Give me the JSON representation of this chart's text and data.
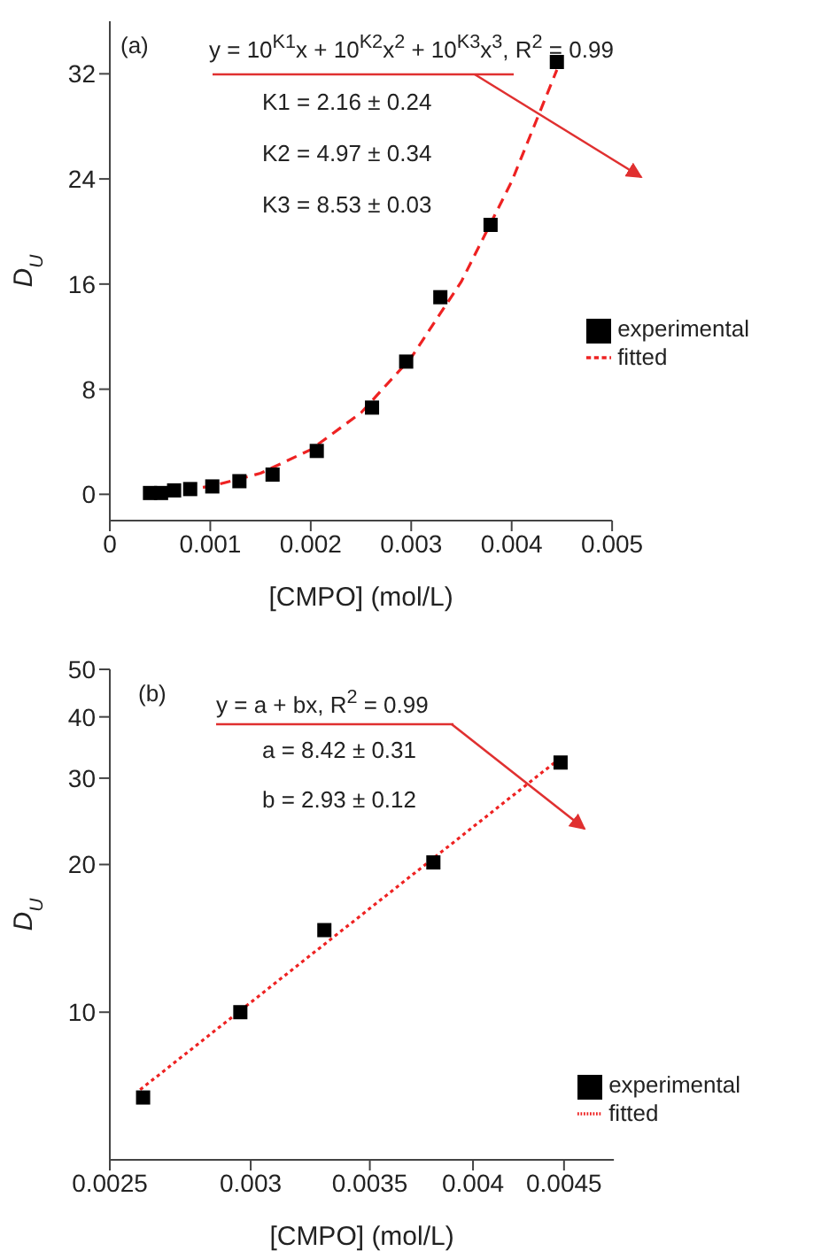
{
  "chart_data": [
    {
      "type": "scatter",
      "xlabel": "[CMPO] (mol/L)",
      "ylabel": "D$_{U}$",
      "xlim": [
        0,
        0.005
      ],
      "xticks": [
        0,
        {
          "value": 0.001,
          "label": "0.001"
        },
        {
          "value": 0.002,
          "label": "0.002"
        },
        {
          "value": 0.003,
          "label": "0.003"
        },
        {
          "value": 0.004,
          "label": "0.004"
        },
        {
          "value": 0.005,
          "label": "0.005"
        }
      ],
      "ylim": [
        -2,
        36
      ],
      "yticks": [
        0,
        8,
        16,
        24,
        32
      ],
      "marker": "square",
      "legend": "right",
      "annotations": [
        "(a)",
        "y = 10$^{K1}$x + 10$^{K2}$x$^{2}$ + 10$^{K3}$x$^{3}$, R$^{2}$ = 0.99",
        "K1 = 2.16 ± 0.24",
        "K2 = 4.97 ± 0.34",
        "K3 = 8.53 ± 0.03"
      ],
      "series": [
        {
          "name": "experimental",
          "color": "#000000",
          "x": [
            0.0004,
            0.00051,
            0.00064,
            0.0008,
            0.00102,
            0.00129,
            0.00162,
            0.00206,
            0.00261,
            0.00295,
            0.00329,
            0.00379,
            0.00445
          ],
          "values": [
            0.1,
            0.1,
            0.3,
            0.4,
            0.6,
            1.0,
            1.5,
            3.3,
            6.6,
            10.1,
            15.0,
            20.5,
            32.9
          ]
        },
        {
          "name": "fitted",
          "type": "line",
          "color": "#ee2222",
          "line_style": "dashed",
          "marker": "none",
          "x": [
            0.0004,
            0.001,
            0.0015,
            0.002,
            0.0025,
            0.003,
            0.0035,
            0.004,
            0.00445
          ],
          "values": [
            0.1,
            0.6,
            1.6,
            3.4,
            6.2,
            10.4,
            16.2,
            23.8,
            32.3
          ]
        }
      ]
    },
    {
      "type": "scatter",
      "xlabel": "[CMPO] (mol/L)",
      "ylabel": "D$_{U}$",
      "log": "xy",
      "xlim": [
        0.0025,
        0.0048
      ],
      "xticks": [
        0.0025,
        0.003,
        0.0035,
        0.004,
        0.0045
      ],
      "ylim": [
        5,
        50
      ],
      "yticks": [
        10,
        20,
        30,
        40,
        50
      ],
      "marker": "square",
      "legend": "bottom right",
      "annotations": [
        "(b)",
        "y = a + bx, R$^{2}$ = 0.99",
        "a = 8.42 ± 0.31",
        "b = 2.93 ± 0.12"
      ],
      "series": [
        {
          "name": "experimental",
          "color": "#000000",
          "x": [
            0.00261,
            0.00296,
            0.0033,
            0.0038,
            0.00448
          ],
          "values": [
            6.7,
            10.0,
            14.7,
            20.2,
            32.3
          ]
        },
        {
          "name": "fitted",
          "type": "line",
          "color": "#ee2222",
          "line_style": "dotted",
          "marker": "none",
          "x": [
            0.0026,
            0.00448
          ],
          "values": [
            6.95,
            33
          ]
        }
      ]
    }
  ]
}
